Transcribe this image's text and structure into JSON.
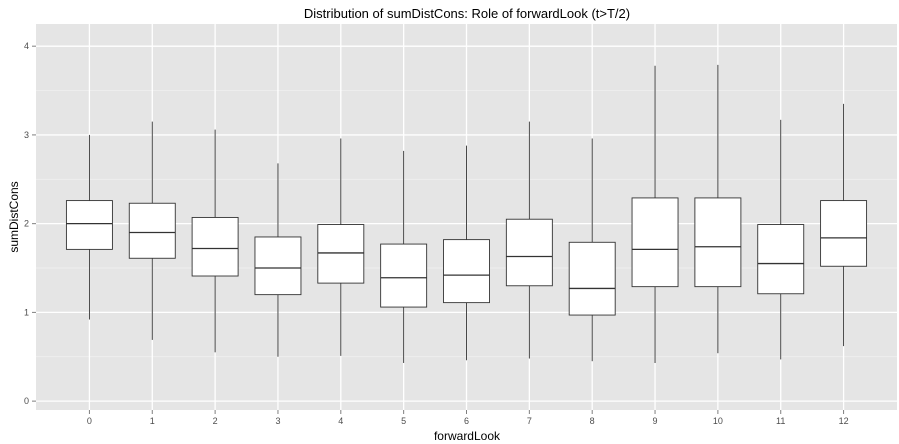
{
  "chart_data": {
    "type": "box",
    "title": "Distribution of sumDistCons: Role of forwardLook (t>T/2)",
    "xlabel": "forwardLook",
    "ylabel": "sumDistCons",
    "categories": [
      "0",
      "1",
      "2",
      "3",
      "4",
      "5",
      "6",
      "7",
      "8",
      "9",
      "10",
      "11",
      "12"
    ],
    "ylim": [
      -0.1,
      4.25
    ],
    "yticks": [
      0,
      1,
      2,
      3,
      4
    ],
    "boxes": [
      {
        "low": 0.92,
        "q1": 1.71,
        "median": 2.0,
        "q3": 2.26,
        "high": 3.0
      },
      {
        "low": 0.69,
        "q1": 1.61,
        "median": 1.9,
        "q3": 2.23,
        "high": 3.15
      },
      {
        "low": 0.55,
        "q1": 1.41,
        "median": 1.72,
        "q3": 2.07,
        "high": 3.06
      },
      {
        "low": 0.5,
        "q1": 1.2,
        "median": 1.5,
        "q3": 1.85,
        "high": 2.68
      },
      {
        "low": 0.51,
        "q1": 1.33,
        "median": 1.67,
        "q3": 1.99,
        "high": 2.96
      },
      {
        "low": 0.43,
        "q1": 1.06,
        "median": 1.39,
        "q3": 1.77,
        "high": 2.82
      },
      {
        "low": 0.46,
        "q1": 1.11,
        "median": 1.42,
        "q3": 1.82,
        "high": 2.88
      },
      {
        "low": 0.48,
        "q1": 1.3,
        "median": 1.63,
        "q3": 2.05,
        "high": 3.15
      },
      {
        "low": 0.45,
        "q1": 0.97,
        "median": 1.27,
        "q3": 1.79,
        "high": 2.96
      },
      {
        "low": 0.43,
        "q1": 1.29,
        "median": 1.71,
        "q3": 2.29,
        "high": 3.78
      },
      {
        "low": 0.54,
        "q1": 1.29,
        "median": 1.74,
        "q3": 2.29,
        "high": 3.79
      },
      {
        "low": 0.47,
        "q1": 1.21,
        "median": 1.55,
        "q3": 1.99,
        "high": 3.17
      },
      {
        "low": 0.62,
        "q1": 1.52,
        "median": 1.84,
        "q3": 2.26,
        "high": 3.35
      }
    ],
    "colors": {
      "panel": "#e5e5e5",
      "grid_major": "#ffffff",
      "grid_minor": "#f2f2f2",
      "box_fill": "#ffffff",
      "box_stroke": "#333333"
    },
    "grid": true,
    "legend": "none"
  }
}
